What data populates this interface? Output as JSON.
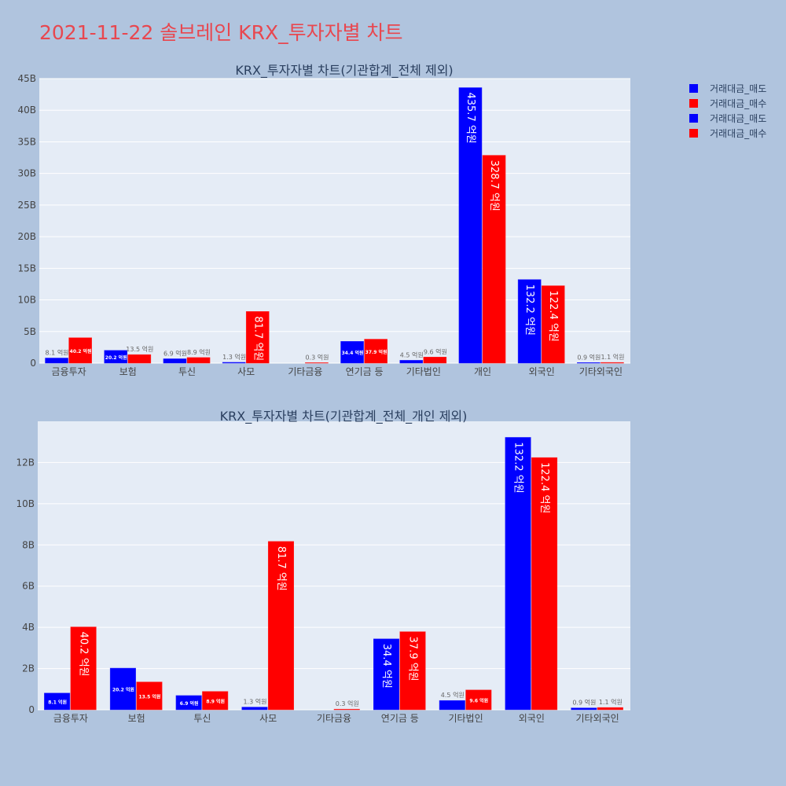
{
  "page_title": "2021-11-22 솔브레인 KRX_투자자별 차트",
  "colors": {
    "sell": "#0000ff",
    "buy": "#ff0000",
    "plot_bg": "#e5ecf6",
    "page_bg": "#b0c4de"
  },
  "legend": [
    {
      "label": "거래대금_매도",
      "color": "#0000ff"
    },
    {
      "label": "거래대금_매수",
      "color": "#ff0000"
    },
    {
      "label": "거래대금_매도",
      "color": "#0000ff"
    },
    {
      "label": "거래대금_매수",
      "color": "#ff0000"
    }
  ],
  "chart_data": [
    {
      "type": "bar",
      "title": "KRX_투자자별 차트(기관합계_전체 제외)",
      "categories": [
        "금융투자",
        "보험",
        "투신",
        "사모",
        "기타금융",
        "연기금 등",
        "기타법인",
        "개인",
        "외국인",
        "기타외국인"
      ],
      "ylim": [
        0,
        45
      ],
      "yticks": [
        0,
        5,
        10,
        15,
        20,
        25,
        30,
        35,
        40,
        45
      ],
      "ytick_labels": [
        "0",
        "5B",
        "10B",
        "15B",
        "20B",
        "25B",
        "30B",
        "35B",
        "40B",
        "45B"
      ],
      "grid": true,
      "series": [
        {
          "name": "거래대금_매도",
          "values": [
            0.81,
            2.02,
            0.69,
            0.13,
            null,
            3.44,
            0.45,
            43.57,
            13.22,
            0.09
          ],
          "labels": [
            "8.1 억원",
            "20.2 억원",
            "6.9 억원",
            "1.3 억원",
            "",
            "34.4 억원",
            "4.5 억원",
            "435.7 억원",
            "132.2 억원",
            "0.9 억원"
          ]
        },
        {
          "name": "거래대금_매수",
          "values": [
            4.02,
            1.35,
            0.89,
            8.17,
            0.03,
            3.79,
            0.96,
            32.87,
            12.24,
            0.11
          ],
          "labels": [
            "40.2 억원",
            "13.5 억원",
            "8.9 억원",
            "81.7 억원",
            "0.3 억원",
            "37.9 억원",
            "9.6 억원",
            "328.7 억원",
            "122.4 억원",
            "1.1 억원"
          ]
        }
      ]
    },
    {
      "type": "bar",
      "title": "KRX_투자자별 차트(기관합계_전체_개인 제외)",
      "categories": [
        "금융투자",
        "보험",
        "투신",
        "사모",
        "기타금융",
        "연기금 등",
        "기타법인",
        "외국인",
        "기타외국인"
      ],
      "ylim": [
        0,
        14
      ],
      "yticks": [
        0,
        2,
        4,
        6,
        8,
        10,
        12
      ],
      "ytick_labels": [
        "0",
        "2B",
        "4B",
        "6B",
        "8B",
        "10B",
        "12B"
      ],
      "grid": true,
      "series": [
        {
          "name": "거래대금_매도",
          "values": [
            0.81,
            2.02,
            0.69,
            0.13,
            null,
            3.44,
            0.45,
            13.22,
            0.09
          ],
          "labels": [
            "8.1 억원",
            "20.2 억원",
            "6.9 억원",
            "1.3 억원",
            "",
            "34.4 억원",
            "4.5 억원",
            "132.2 억원",
            "0.9 억원"
          ]
        },
        {
          "name": "거래대금_매수",
          "values": [
            4.02,
            1.35,
            0.89,
            8.17,
            0.03,
            3.79,
            0.96,
            12.24,
            0.11
          ],
          "labels": [
            "40.2 억원",
            "13.5 억원",
            "8.9 억원",
            "81.7 억원",
            "0.3 억원",
            "37.9 억원",
            "9.6 억원",
            "122.4 억원",
            "1.1 억원"
          ]
        }
      ]
    }
  ]
}
